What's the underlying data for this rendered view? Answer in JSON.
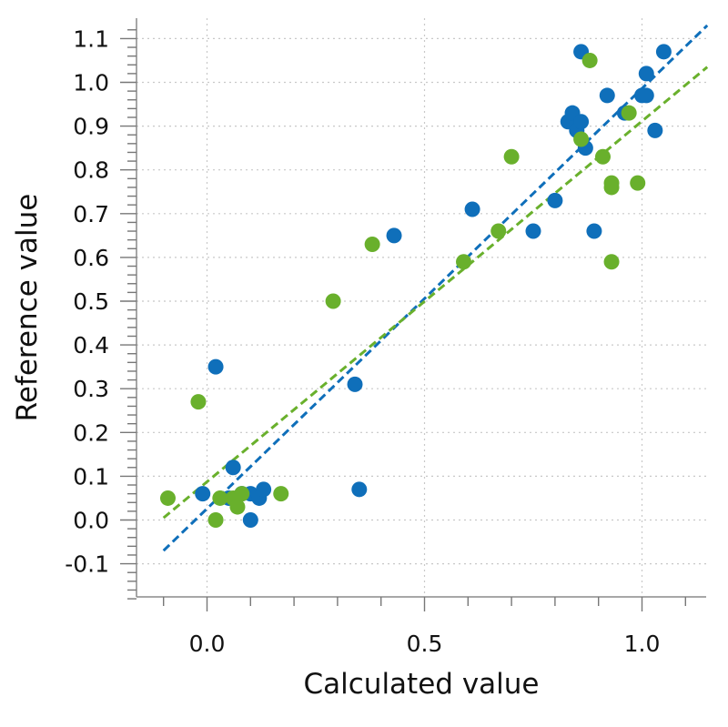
{
  "chart_data": {
    "type": "scatter",
    "xlabel": "Calculated value",
    "ylabel": "Reference value",
    "xlim": [
      -0.15,
      1.15
    ],
    "ylim": [
      -0.18,
      1.13
    ],
    "x_ticks": [
      0.0,
      0.5,
      1.0
    ],
    "x_tick_labels": [
      "0.0",
      "0.5",
      "1.0"
    ],
    "y_ticks": [
      -0.1,
      0.0,
      0.1,
      0.2,
      0.3,
      0.4,
      0.5,
      0.6,
      0.7,
      0.8,
      0.9,
      1.0,
      1.1
    ],
    "y_tick_labels": [
      "-0.1",
      "0.0",
      "0.1",
      "0.2",
      "0.3",
      "0.4",
      "0.5",
      "0.6",
      "0.7",
      "0.8",
      "0.9",
      "1.0",
      "1.1"
    ],
    "grid": true,
    "series": [
      {
        "color": "#0f6fba",
        "points": [
          [
            -0.01,
            0.06
          ],
          [
            0.02,
            0.35
          ],
          [
            0.06,
            0.12
          ],
          [
            0.05,
            0.05
          ],
          [
            0.08,
            0.06
          ],
          [
            0.1,
            0.06
          ],
          [
            0.12,
            0.05
          ],
          [
            0.13,
            0.07
          ],
          [
            0.1,
            0.0
          ],
          [
            0.34,
            0.31
          ],
          [
            0.35,
            0.07
          ],
          [
            0.43,
            0.65
          ],
          [
            0.61,
            0.71
          ],
          [
            0.75,
            0.66
          ],
          [
            0.8,
            0.73
          ],
          [
            0.83,
            0.91
          ],
          [
            0.84,
            0.93
          ],
          [
            0.85,
            0.89
          ],
          [
            0.86,
            0.91
          ],
          [
            0.86,
            1.07
          ],
          [
            0.87,
            0.85
          ],
          [
            0.89,
            0.66
          ],
          [
            0.92,
            0.97
          ],
          [
            0.96,
            0.93
          ],
          [
            1.0,
            0.97
          ],
          [
            1.01,
            0.97
          ],
          [
            1.01,
            1.02
          ],
          [
            1.03,
            0.89
          ],
          [
            1.05,
            1.07
          ]
        ],
        "fit": {
          "x1": -0.1,
          "y1": -0.07,
          "x2": 1.15,
          "y2": 1.13
        }
      },
      {
        "color": "#69b02c",
        "points": [
          [
            -0.09,
            0.05
          ],
          [
            -0.02,
            0.27
          ],
          [
            0.02,
            0.0
          ],
          [
            0.03,
            0.05
          ],
          [
            0.06,
            0.05
          ],
          [
            0.07,
            0.03
          ],
          [
            0.08,
            0.06
          ],
          [
            0.17,
            0.06
          ],
          [
            0.29,
            0.5
          ],
          [
            0.38,
            0.63
          ],
          [
            0.59,
            0.59
          ],
          [
            0.67,
            0.66
          ],
          [
            0.7,
            0.83
          ],
          [
            0.86,
            0.87
          ],
          [
            0.88,
            1.05
          ],
          [
            0.91,
            0.83
          ],
          [
            0.93,
            0.77
          ],
          [
            0.93,
            0.76
          ],
          [
            0.93,
            0.59
          ],
          [
            0.97,
            0.93
          ],
          [
            0.99,
            0.77
          ]
        ],
        "fit": {
          "x1": -0.1,
          "y1": 0.005,
          "x2": 1.15,
          "y2": 1.035
        }
      }
    ]
  }
}
